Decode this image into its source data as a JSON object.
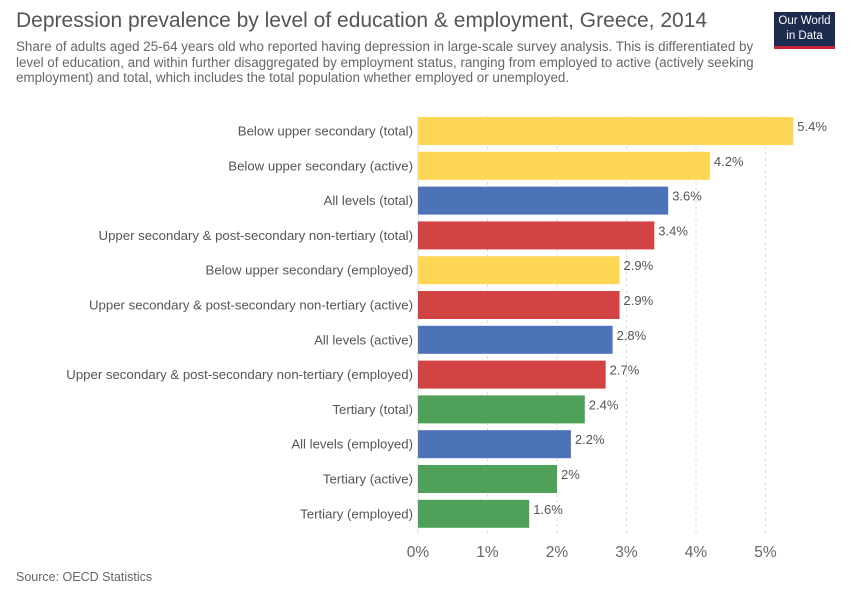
{
  "header": {
    "title": "Depression prevalence by level of education & employment, Greece, 2014",
    "subtitle": "Share of adults aged 25-64 years old who reported having depression in large-scale survey analysis. This is differentiated by level of education, and within further disaggregated by employment status, ranging from employed to active (actively seeking employment) and total, which includes the total population whether employed or unemployed."
  },
  "logo": {
    "line1": "Our World",
    "line2": "in Data"
  },
  "footer": {
    "source": "Source: OECD Statistics"
  },
  "colors": {
    "below_upper_secondary": "#fdd755",
    "all_levels": "#4c72b7",
    "upper_secondary": "#d24444",
    "tertiary": "#4fa15a"
  },
  "chart_data": {
    "type": "bar",
    "orientation": "horizontal",
    "unit": "%",
    "categories": [
      "Below upper secondary (total)",
      "Below upper secondary (active)",
      "All levels (total)",
      "Upper secondary & post-secondary non-tertiary (total)",
      "Below upper secondary (employed)",
      "Upper secondary & post-secondary non-tertiary (active)",
      "All levels (active)",
      "Upper secondary & post-secondary non-tertiary (employed)",
      "Tertiary (total)",
      "All levels (employed)",
      "Tertiary (active)",
      "Tertiary (employed)"
    ],
    "values": [
      5.4,
      4.2,
      3.6,
      3.4,
      2.9,
      2.9,
      2.8,
      2.7,
      2.4,
      2.2,
      2.0,
      1.6
    ],
    "value_labels": [
      "5.4%",
      "4.2%",
      "3.6%",
      "3.4%",
      "2.9%",
      "2.9%",
      "2.8%",
      "2.7%",
      "2.4%",
      "2.2%",
      "2%",
      "1.6%"
    ],
    "bar_colors": [
      "#fdd755",
      "#fdd755",
      "#4c72b7",
      "#d24444",
      "#fdd755",
      "#d24444",
      "#4c72b7",
      "#d24444",
      "#4fa15a",
      "#4c72b7",
      "#4fa15a",
      "#4fa15a"
    ],
    "xlim": [
      0,
      5
    ],
    "ticks": [
      0,
      1,
      2,
      3,
      4,
      5
    ],
    "tick_labels": [
      "0%",
      "1%",
      "2%",
      "3%",
      "4%",
      "5%"
    ],
    "grid": true,
    "legend": "none"
  }
}
